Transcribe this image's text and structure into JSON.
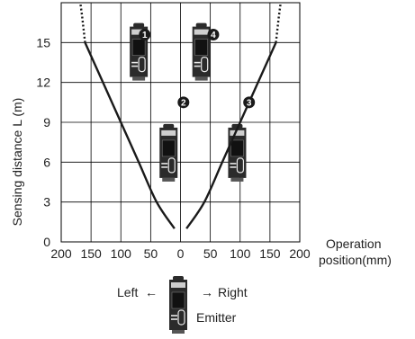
{
  "chart_data": {
    "type": "line",
    "ylabel": "Sensing distance L (m)",
    "xlabel_lines": [
      "Operation",
      "position(mm)"
    ],
    "x_ticks": [
      200,
      150,
      100,
      50,
      0,
      50,
      100,
      150,
      200
    ],
    "y_ticks": [
      0,
      3,
      6,
      9,
      12,
      15
    ],
    "xlim": [
      -200,
      200
    ],
    "ylim": [
      0,
      18
    ],
    "grid": true,
    "series": [
      {
        "side": "left",
        "points": [
          [
            -10,
            1
          ],
          [
            -40,
            3
          ],
          [
            -70,
            6
          ],
          [
            -100,
            9
          ],
          [
            -130,
            12
          ],
          [
            -160,
            15
          ]
        ],
        "dotted_extension": [
          [
            -160,
            15
          ],
          [
            -165,
            17
          ],
          [
            -168,
            18
          ]
        ]
      },
      {
        "side": "right",
        "points": [
          [
            10,
            1
          ],
          [
            40,
            3
          ],
          [
            70,
            6
          ],
          [
            100,
            9
          ],
          [
            130,
            12
          ],
          [
            160,
            15
          ]
        ],
        "dotted_extension": [
          [
            160,
            15
          ],
          [
            165,
            17
          ],
          [
            168,
            18
          ]
        ]
      }
    ],
    "position_markers": [
      {
        "label": "1",
        "x": -60,
        "y": 15.6
      },
      {
        "label": "2",
        "x": 5,
        "y": 10.5
      },
      {
        "label": "3",
        "x": 115,
        "y": 10.5
      },
      {
        "label": "4",
        "x": 55,
        "y": 15.6
      }
    ],
    "sensor_positions": [
      {
        "x": -70,
        "y": 16.2
      },
      {
        "x": 35,
        "y": 16.2
      },
      {
        "x": -20,
        "y": 8.6
      },
      {
        "x": 95,
        "y": 8.6
      }
    ]
  },
  "legend": {
    "left_label": "Left",
    "right_label": "Right",
    "emitter_label": "Emitter"
  },
  "colors": {
    "curve": "#1a1a1a",
    "grid": "#000000",
    "sensor_body": "#2b2b2b"
  }
}
